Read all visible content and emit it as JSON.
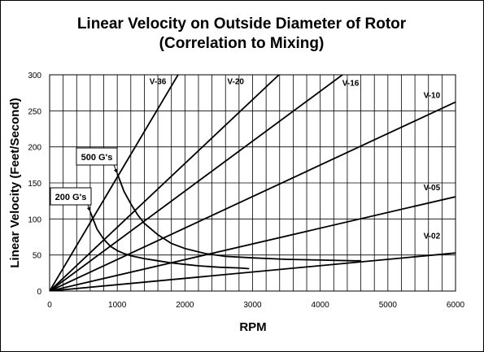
{
  "chart_data": {
    "type": "line",
    "title": "Linear Velocity on Outside Diameter of Rotor",
    "subtitle": "(Correlation to Mixing)",
    "xlabel": "RPM",
    "ylabel": "Linear Velocity (Feet/Second)",
    "xlim": [
      0,
      6000
    ],
    "ylim": [
      0,
      300
    ],
    "xticks": [
      0,
      1000,
      2000,
      3000,
      4000,
      5000,
      6000
    ],
    "yticks": [
      0,
      50,
      100,
      150,
      200,
      250,
      300
    ],
    "grid": {
      "vertical_step": 200,
      "horizontal_step": 50
    },
    "series": [
      {
        "name": "V-36",
        "kind": "line",
        "slope_fps_per_rpm": 0.158
      },
      {
        "name": "V-20",
        "kind": "line",
        "slope_fps_per_rpm": 0.0885
      },
      {
        "name": "V-16",
        "kind": "line",
        "slope_fps_per_rpm": 0.0693
      },
      {
        "name": "V-10",
        "kind": "line",
        "slope_fps_per_rpm": 0.0437
      },
      {
        "name": "V-05",
        "kind": "line",
        "slope_fps_per_rpm": 0.0218
      },
      {
        "name": "V-02",
        "kind": "line",
        "slope_fps_per_rpm": 0.0088
      }
    ],
    "curves": [
      {
        "label": "500 G's",
        "x": [
          1000,
          1100,
          1200,
          1300,
          1400,
          1600,
          1800,
          2000,
          2300,
          2600,
          3000,
          3500,
          4000,
          4500,
          4600
        ],
        "y": [
          163,
          138,
          121,
          106,
          94,
          78,
          66,
          59,
          52,
          48,
          46,
          44,
          43,
          42,
          42
        ]
      },
      {
        "label": "200 G's",
        "x": [
          600,
          700,
          800,
          900,
          1000,
          1100,
          1200,
          1400,
          1600,
          1800,
          2000,
          2200,
          2500,
          2800,
          2950
        ],
        "y": [
          110,
          86,
          72,
          62,
          56,
          52,
          49,
          45,
          42,
          39,
          37,
          35,
          33,
          32,
          31
        ]
      }
    ],
    "annotations": [
      {
        "text": "500 G's",
        "points_to_x": 1000,
        "points_to_y": 163
      },
      {
        "text": "200 G's",
        "points_to_x": 600,
        "points_to_y": 110
      }
    ],
    "colors": {
      "lines": "#000000",
      "grid": "#000000",
      "background": "#ffffff"
    }
  }
}
